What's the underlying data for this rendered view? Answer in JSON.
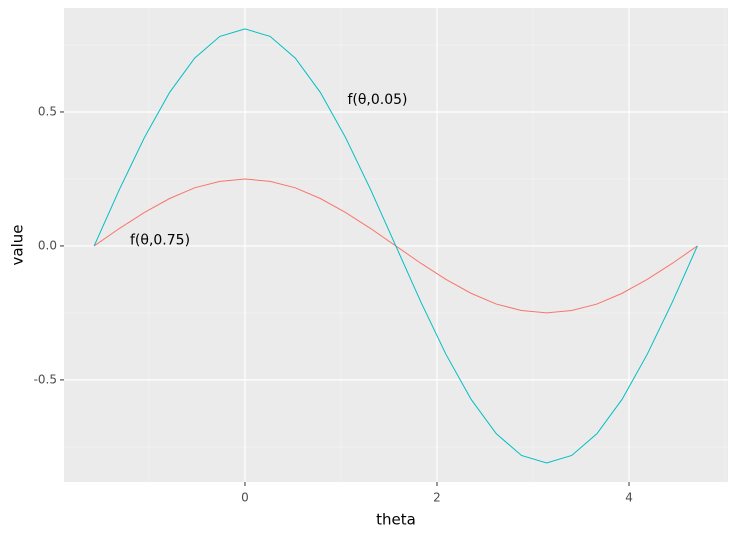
{
  "chart_data": {
    "type": "line",
    "x_label": "theta",
    "y_label": "value",
    "x": [
      -1.571,
      -1.309,
      -1.047,
      -0.785,
      -0.524,
      -0.262,
      0,
      0.262,
      0.524,
      0.785,
      1.047,
      1.309,
      1.571,
      1.833,
      2.094,
      2.356,
      2.618,
      2.88,
      3.142,
      3.403,
      3.665,
      3.927,
      4.189,
      4.451,
      4.712
    ],
    "series": [
      {
        "color": "#f8766d",
        "values": [
          0,
          0.065,
          0.125,
          0.177,
          0.217,
          0.241,
          0.25,
          0.241,
          0.217,
          0.177,
          0.125,
          0.065,
          0,
          -0.065,
          -0.125,
          -0.177,
          -0.217,
          -0.241,
          -0.25,
          -0.241,
          -0.217,
          -0.177,
          -0.125,
          -0.065,
          0
        ]
      },
      {
        "color": "#00bfc4",
        "values": [
          0,
          0.21,
          0.405,
          0.573,
          0.701,
          0.782,
          0.81,
          0.782,
          0.701,
          0.573,
          0.405,
          0.21,
          0,
          -0.21,
          -0.405,
          -0.573,
          -0.701,
          -0.782,
          -0.81,
          -0.782,
          -0.701,
          -0.573,
          -0.405,
          -0.21,
          0
        ]
      }
    ],
    "annotations": [
      {
        "text": "f(θ,0.05)",
        "x": 1.38,
        "y": 0.545
      },
      {
        "text": "f(θ,0.75)",
        "x": -0.885,
        "y": 0.02
      }
    ],
    "xlim": [
      -1.885,
      5.031
    ],
    "ylim": [
      -0.881,
      0.888
    ],
    "xticks": [
      0,
      2,
      4
    ],
    "yticks": [
      -0.5,
      {
        "value": 0,
        "label": "0.0"
      },
      0.5
    ],
    "minor_xticks": [
      -1,
      1,
      3,
      5
    ],
    "minor_yticks": [
      -0.75,
      -0.25,
      0.25,
      0.75
    ],
    "grid": true
  }
}
